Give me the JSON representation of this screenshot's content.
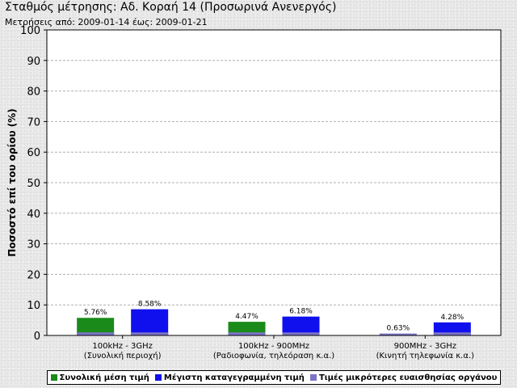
{
  "header": {
    "title": "Σταθμός μέτρησης: Αδ. Κοραή 14 (Προσωρινά Ανενεργός)",
    "subtitle": "Μετρήσεις από: 2009-01-14 έως: 2009-01-21"
  },
  "colors": {
    "mean": "#1a8a1a",
    "max": "#1010ee",
    "below": "#7b73c8",
    "grid": "#b0b0b0",
    "plot_bg": "#ffffff"
  },
  "chart_data": {
    "type": "bar",
    "title": "Σταθμός μέτρησης: Αδ. Κοραή 14 (Προσωρινά Ανενεργός)",
    "subtitle": "Μετρήσεις από: 2009-01-14 έως: 2009-01-21",
    "ylabel": "Ποσοστό επί του ορίου (%)",
    "xlabel": "",
    "ylim": [
      0,
      100
    ],
    "yticks": [
      0,
      10,
      20,
      30,
      40,
      50,
      60,
      70,
      80,
      90,
      100
    ],
    "grid": true,
    "legend_position": "bottom",
    "categories": [
      [
        "100kHz - 3GHz",
        "(Συνολική περιοχή)"
      ],
      [
        "100kHz - 900MHz",
        "(Ραδιοφωνία, τηλεόραση κ.α.)"
      ],
      [
        "900MHz - 3GHz",
        "(Κινητή τηλεφωνία κ.α.)"
      ]
    ],
    "series": [
      {
        "name": "Συνολική μέση τιμή",
        "color": "#1a8a1a",
        "values": [
          5.76,
          4.47,
          null
        ],
        "labels": [
          "5.76%",
          "4.47%",
          ""
        ]
      },
      {
        "name": "Μέγιστη καταγεγραμμένη τιμή",
        "color": "#1010ee",
        "values": [
          8.58,
          6.18,
          4.28
        ],
        "labels": [
          "8.58%",
          "6.18%",
          "4.28%"
        ]
      }
    ],
    "below_sensitivity": {
      "name": "Τιμές μικρότερες ευαισθησίας οργάνου",
      "color": "#7b73c8",
      "values": [
        [
          1,
          1
        ],
        [
          1,
          1
        ],
        [
          0.63,
          1
        ]
      ],
      "labels": [
        "",
        "",
        "0.63%"
      ]
    }
  }
}
